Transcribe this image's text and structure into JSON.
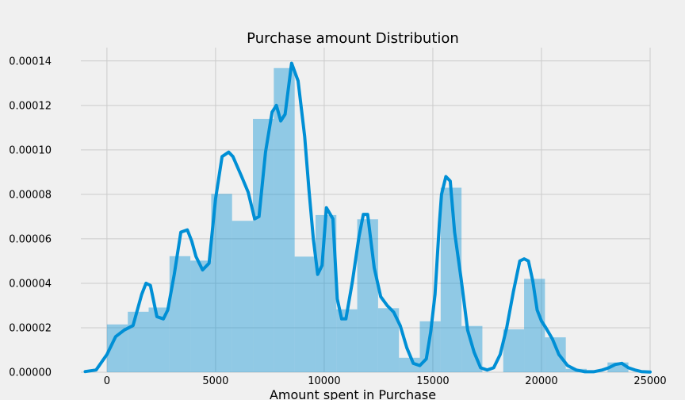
{
  "chart_data": {
    "type": "bar",
    "title": "Purchase amount Distribution",
    "xlabel": "Amount spent in Purchase",
    "ylabel": "",
    "xlim": [
      -1200,
      25000
    ],
    "ylim": [
      0,
      0.000146
    ],
    "xticks": [
      0,
      5000,
      10000,
      15000,
      20000,
      25000
    ],
    "xtick_labels": [
      "0",
      "5000",
      "10000",
      "15000",
      "20000",
      "25000"
    ],
    "yticks": [
      0,
      2e-05,
      4e-05,
      6e-05,
      8e-05,
      0.0001,
      0.00012,
      0.00014
    ],
    "ytick_labels": [
      "0.00000",
      "0.00002",
      "0.00004",
      "0.00006",
      "0.00008",
      "0.00010",
      "0.00012",
      "0.00014"
    ],
    "grid": true,
    "histogram": {
      "bin_edges": [
        0,
        960,
        1920,
        2880,
        3840,
        4800,
        5760,
        6720,
        7680,
        8640,
        9600,
        10560,
        11520,
        12480,
        13440,
        14400,
        15360,
        16320,
        17280,
        18240,
        19200,
        20160,
        21120,
        22080,
        23040,
        24000
      ],
      "density": [
        2.15e-05,
        2.72e-05,
        2.91e-05,
        5.22e-05,
        5.02e-05,
        8.02e-05,
        6.81e-05,
        0.0001139,
        0.0001368,
        5.2e-05,
        7.07e-05,
        2.83e-05,
        6.88e-05,
        2.88e-05,
        6.5e-06,
        2.29e-05,
        8.3e-05,
        2.08e-05,
        0.0,
        1.93e-05,
        4.2e-05,
        1.57e-05,
        1.5e-06,
        0.0,
        4.4e-06
      ]
    },
    "kde": {
      "x": [
        -1000,
        -500,
        0,
        400,
        800,
        1200,
        1600,
        1800,
        2000,
        2300,
        2600,
        2800,
        3100,
        3400,
        3700,
        3900,
        4100,
        4400,
        4700,
        5000,
        5300,
        5600,
        5800,
        6200,
        6500,
        6800,
        7000,
        7300,
        7600,
        7800,
        8000,
        8200,
        8500,
        8800,
        9100,
        9300,
        9500,
        9700,
        9900,
        10100,
        10400,
        10600,
        10800,
        11000,
        11300,
        11600,
        11800,
        12000,
        12300,
        12600,
        12900,
        13200,
        13500,
        13800,
        14100,
        14400,
        14700,
        14900,
        15100,
        15300,
        15400,
        15600,
        15800,
        16000,
        16300,
        16600,
        16900,
        17200,
        17500,
        17800,
        18100,
        18400,
        18700,
        19000,
        19200,
        19400,
        19600,
        19800,
        20000,
        20200,
        20500,
        20800,
        21200,
        21600,
        22000,
        22400,
        22800,
        23100,
        23400,
        23700,
        24000,
        24300,
        24600,
        25000
      ],
      "y": [
        3e-07,
        1e-06,
        8e-06,
        1.6e-05,
        1.9e-05,
        2.1e-05,
        3.5e-05,
        4e-05,
        3.9e-05,
        2.5e-05,
        2.4e-05,
        2.8e-05,
        4.4e-05,
        6.3e-05,
        6.4e-05,
        5.9e-05,
        5.2e-05,
        4.6e-05,
        4.9e-05,
        7.8e-05,
        9.7e-05,
        9.9e-05,
        9.7e-05,
        8.8e-05,
        8.1e-05,
        6.9e-05,
        7e-05,
        9.9e-05,
        0.000117,
        0.00012,
        0.000113,
        0.000116,
        0.000139,
        0.000131,
        0.000106,
        8.2e-05,
        6e-05,
        4.4e-05,
        4.8e-05,
        7.4e-05,
        6.9e-05,
        3.3e-05,
        2.4e-05,
        2.4e-05,
        4.1e-05,
        6.1e-05,
        7.1e-05,
        7.1e-05,
        4.7e-05,
        3.4e-05,
        3e-05,
        2.7e-05,
        2.1e-05,
        1.1e-05,
        4e-06,
        3e-06,
        6e-06,
        1.8e-05,
        3.5e-05,
        6.7e-05,
        8e-05,
        8.8e-05,
        8.6e-05,
        6.3e-05,
        4.2e-05,
        1.9e-05,
        9e-06,
        2e-06,
        1e-06,
        2e-06,
        8e-06,
        2e-05,
        3.6e-05,
        5e-05,
        5.1e-05,
        5e-05,
        4.1e-05,
        2.8e-05,
        2.3e-05,
        2e-05,
        1.5e-05,
        8e-06,
        3e-06,
        1e-06,
        2e-07,
        2e-07,
        1e-06,
        2e-06,
        3.5e-06,
        4e-06,
        2e-06,
        1e-06,
        3e-07,
        1e-07
      ]
    },
    "colors": {
      "background": "#f0f0f0",
      "grid": "#cbcbcb",
      "bar_fill": "#008fd5",
      "bar_opacity": 0.4,
      "kde_line": "#008fd5"
    }
  }
}
